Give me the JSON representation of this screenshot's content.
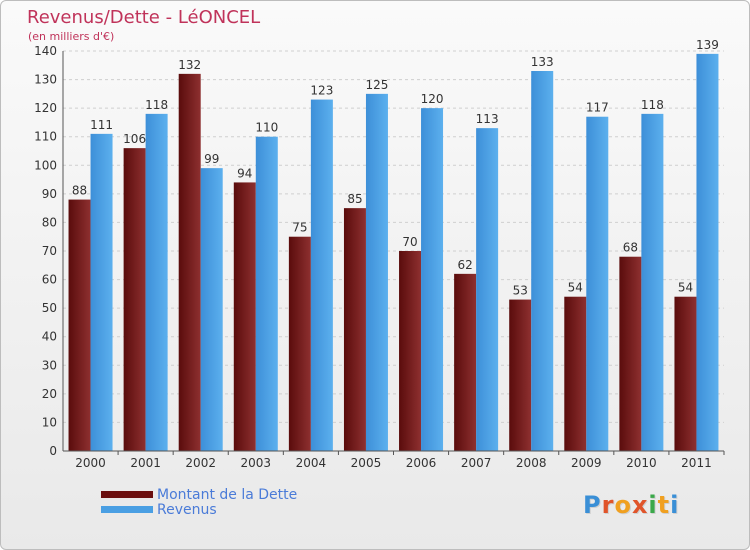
{
  "title": "Revenus/Dette - LéONCEL",
  "subtitle": "(en milliers d'€)",
  "chart_data": {
    "type": "bar",
    "categories": [
      "2000",
      "2001",
      "2002",
      "2003",
      "2004",
      "2005",
      "2006",
      "2007",
      "2008",
      "2009",
      "2010",
      "2011"
    ],
    "series": [
      {
        "name": "Montant de la Dette",
        "values": [
          88,
          106,
          132,
          94,
          75,
          85,
          70,
          62,
          53,
          54,
          68,
          54
        ],
        "color": "#7a1f1f"
      },
      {
        "name": "Revenus",
        "values": [
          111,
          118,
          99,
          110,
          123,
          125,
          120,
          113,
          133,
          117,
          118,
          139
        ],
        "color": "#4a9fe3"
      }
    ],
    "ylim": [
      0,
      140
    ],
    "yticks": [
      0,
      10,
      20,
      30,
      40,
      50,
      60,
      70,
      80,
      90,
      100,
      110,
      120,
      130,
      140
    ],
    "grid": true,
    "legend": "bottom-left"
  },
  "legend": {
    "items": [
      {
        "label": "Montant de la Dette",
        "color": "#6b0f0f"
      },
      {
        "label": "Revenus",
        "color": "#4a9fe3"
      }
    ]
  },
  "logo": {
    "letters": [
      {
        "ch": "P",
        "color": "#3a8fd6"
      },
      {
        "ch": "r",
        "color": "#e0542a"
      },
      {
        "ch": "o",
        "color": "#f0a020"
      },
      {
        "ch": "x",
        "color": "#e0542a"
      },
      {
        "ch": "i",
        "color": "#3aa84a"
      },
      {
        "ch": "t",
        "color": "#f0a020"
      },
      {
        "ch": "i",
        "color": "#3a8fd6"
      }
    ]
  }
}
